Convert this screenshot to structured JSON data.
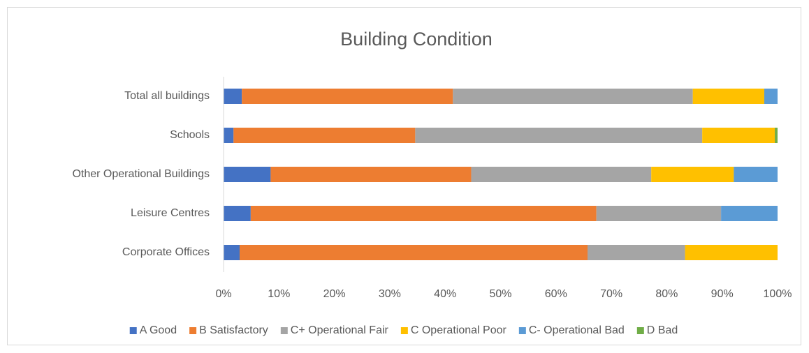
{
  "chart_data": {
    "type": "stacked_barh",
    "title": "Building Condition",
    "categories": [
      "Total all buildings",
      "Schools",
      "Other Operational Buildings",
      "Leisure Centres",
      "Corporate Offices"
    ],
    "series": [
      {
        "name": "A Good",
        "color": "#4472c4",
        "values": [
          3.3,
          1.8,
          8.5,
          4.9,
          2.9
        ]
      },
      {
        "name": "B Satisfactory",
        "color": "#ed7d31",
        "values": [
          38.1,
          32.8,
          36.2,
          62.4,
          62.8
        ]
      },
      {
        "name": "C+ Operational Fair",
        "color": "#a5a5a5",
        "values": [
          43.3,
          51.8,
          32.5,
          22.5,
          17.6
        ]
      },
      {
        "name": "C Operational Poor",
        "color": "#ffc000",
        "values": [
          12.9,
          13.1,
          14.9,
          0,
          16.7
        ]
      },
      {
        "name": "C- Operational Bad",
        "color": "#5b9bd5",
        "values": [
          2.4,
          0,
          7.9,
          10.2,
          0
        ]
      },
      {
        "name": "D Bad",
        "color": "#70ad47",
        "values": [
          0,
          0.5,
          0,
          0,
          0
        ]
      }
    ],
    "xlim": [
      0,
      100
    ],
    "xticks": [
      {
        "value": 0,
        "label": "0%"
      },
      {
        "value": 10,
        "label": "10%"
      },
      {
        "value": 20,
        "label": "20%"
      },
      {
        "value": 30,
        "label": "30%"
      },
      {
        "value": 40,
        "label": "40%"
      },
      {
        "value": 50,
        "label": "50%"
      },
      {
        "value": 60,
        "label": "60%"
      },
      {
        "value": 70,
        "label": "70%"
      },
      {
        "value": 80,
        "label": "80%"
      },
      {
        "value": 90,
        "label": "90%"
      },
      {
        "value": 100,
        "label": "100%"
      }
    ],
    "legend": "bottom"
  }
}
